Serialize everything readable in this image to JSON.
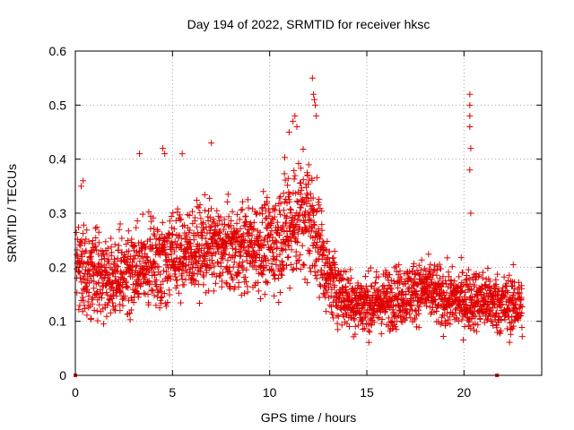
{
  "colors": {
    "series": "#e00000",
    "grid": "#a0a0a0",
    "frame": "#000000"
  },
  "chart_data": {
    "type": "scatter",
    "title": "Day 194 of 2022, SRMTID for receiver hksc",
    "xlabel": "GPS time / hours",
    "ylabel": "SRMTID / TECUs",
    "xlim": [
      0,
      24
    ],
    "ylim": [
      0,
      0.6
    ],
    "xticks": [
      0,
      5,
      10,
      15,
      20
    ],
    "xtick_labels": [
      "0",
      "5",
      "10",
      "15",
      "20"
    ],
    "yticks": [
      0,
      0.1,
      0.2,
      0.3,
      0.4,
      0.5,
      0.6
    ],
    "ytick_labels": [
      "0",
      "0.1",
      "0.2",
      "0.3",
      "0.4",
      "0.5",
      "0.6"
    ],
    "grid": true,
    "marker": "+",
    "series": [
      {
        "name": "SRMTID",
        "profile_hours": [
          0,
          1,
          2,
          3,
          4,
          5,
          6,
          7,
          8,
          9,
          10,
          11,
          12,
          12.5,
          13,
          14,
          15,
          16,
          17,
          18,
          19,
          20,
          21,
          22,
          23
        ],
        "profile_median": [
          0.2,
          0.19,
          0.18,
          0.19,
          0.21,
          0.22,
          0.23,
          0.24,
          0.23,
          0.24,
          0.24,
          0.28,
          0.3,
          0.25,
          0.18,
          0.14,
          0.13,
          0.14,
          0.15,
          0.16,
          0.14,
          0.14,
          0.14,
          0.13,
          0.13
        ],
        "profile_spread": [
          0.07,
          0.07,
          0.07,
          0.07,
          0.07,
          0.07,
          0.07,
          0.07,
          0.07,
          0.07,
          0.08,
          0.1,
          0.1,
          0.08,
          0.06,
          0.05,
          0.05,
          0.05,
          0.05,
          0.05,
          0.05,
          0.05,
          0.05,
          0.05,
          0.05
        ],
        "sample_interval_hours": 0.0084,
        "points": [
          [
            0.0,
            0.0
          ],
          [
            21.7,
            0.0
          ],
          [
            0.3,
            0.35
          ],
          [
            0.4,
            0.36
          ],
          [
            3.3,
            0.41
          ],
          [
            4.5,
            0.42
          ],
          [
            4.6,
            0.41
          ],
          [
            5.5,
            0.41
          ],
          [
            7.0,
            0.43
          ],
          [
            11.0,
            0.45
          ],
          [
            11.2,
            0.47
          ],
          [
            11.3,
            0.48
          ],
          [
            11.4,
            0.46
          ],
          [
            12.2,
            0.55
          ],
          [
            12.25,
            0.52
          ],
          [
            12.3,
            0.51
          ],
          [
            12.35,
            0.5
          ],
          [
            12.4,
            0.48
          ],
          [
            20.3,
            0.52
          ],
          [
            20.3,
            0.5
          ],
          [
            20.3,
            0.48
          ],
          [
            20.3,
            0.46
          ],
          [
            20.35,
            0.42
          ],
          [
            20.3,
            0.38
          ],
          [
            20.35,
            0.3
          ]
        ]
      }
    ]
  }
}
